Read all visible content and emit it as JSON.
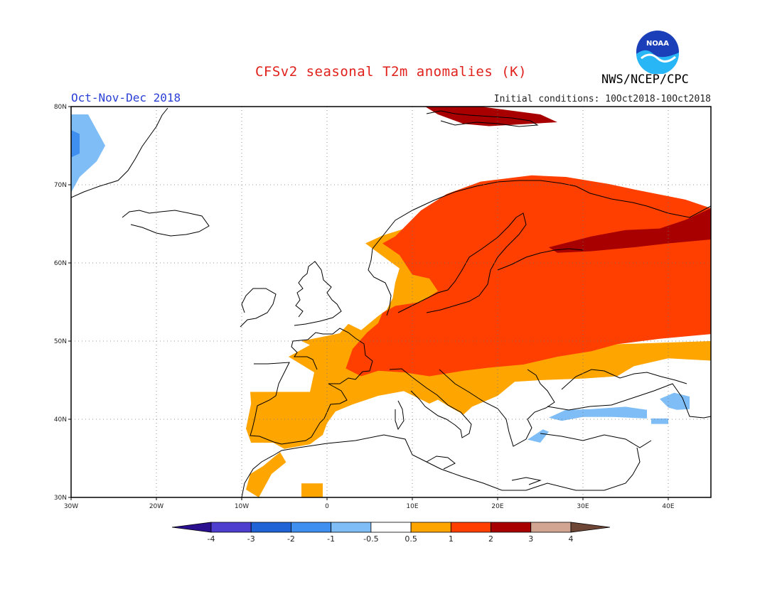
{
  "title": "CFSv2 seasonal T2m anomalies (K)",
  "agency": "NWS/NCEP/CPC",
  "logo_text": "NOAA",
  "season": "Oct-Nov-Dec 2018",
  "initial_conditions": "Initial conditions: 10Oct2018-10Oct2018",
  "map": {
    "lon_range": [
      -30,
      45
    ],
    "lat_range": [
      30,
      80
    ],
    "lon_ticks": [
      {
        "value": -30,
        "label": "30W"
      },
      {
        "value": -20,
        "label": "20W"
      },
      {
        "value": -10,
        "label": "10W"
      },
      {
        "value": 0,
        "label": "0"
      },
      {
        "value": 10,
        "label": "10E"
      },
      {
        "value": 20,
        "label": "20E"
      },
      {
        "value": 30,
        "label": "30E"
      },
      {
        "value": 40,
        "label": "40E"
      }
    ],
    "lat_ticks": [
      {
        "value": 30,
        "label": "30N"
      },
      {
        "value": 40,
        "label": "40N"
      },
      {
        "value": 50,
        "label": "50N"
      },
      {
        "value": 60,
        "label": "60N"
      },
      {
        "value": 70,
        "label": "70N"
      },
      {
        "value": 80,
        "label": "80N"
      }
    ],
    "grid": "dotted"
  },
  "colorbar": {
    "colors": [
      "#2a0f8f",
      "#4d3ecf",
      "#1f63d6",
      "#3f8ff0",
      "#7fbdf6",
      "#ffffff",
      "#ffa500",
      "#ff3f00",
      "#a80000",
      "#d2a593",
      "#6e4636"
    ],
    "labels": [
      "-4",
      "-3",
      "-2",
      "-1",
      "-0.5",
      "0.5",
      "1",
      "2",
      "3",
      "4"
    ]
  },
  "regions": [
    {
      "name": "Greenland coast",
      "category": "-1 to -0.5",
      "color": "#7fbdf6",
      "polygon": [
        [
          -30,
          79
        ],
        [
          -28,
          79
        ],
        [
          -27,
          77
        ],
        [
          -26,
          75
        ],
        [
          -27,
          73
        ],
        [
          -29,
          71
        ],
        [
          -30,
          69
        ]
      ]
    },
    {
      "name": "Greenland coast core",
      "category": "-2 to -1",
      "color": "#3f8ff0",
      "polygon": [
        [
          -30,
          77
        ],
        [
          -29,
          76.5
        ],
        [
          -29,
          74
        ],
        [
          -30,
          73.5
        ]
      ]
    },
    {
      "name": "Iberia and western Europe",
      "category": "0.5 to 1",
      "color": "#ffa500",
      "polygon": [
        [
          -9,
          43.5
        ],
        [
          -2,
          43.5
        ],
        [
          -1.5,
          46
        ],
        [
          -4.5,
          48
        ],
        [
          -2,
          49.5
        ],
        [
          -3,
          50
        ],
        [
          1.5,
          51
        ],
        [
          2.5,
          52.2
        ],
        [
          4,
          51.4
        ],
        [
          6,
          53.2
        ],
        [
          7,
          54
        ],
        [
          7.7,
          55.5
        ],
        [
          8,
          57.5
        ],
        [
          8.5,
          59.3
        ],
        [
          4.5,
          62.5
        ],
        [
          6.5,
          63.5
        ],
        [
          10,
          64.7
        ],
        [
          12,
          62
        ],
        [
          16,
          61
        ],
        [
          17,
          58.5
        ],
        [
          15,
          56.8
        ],
        [
          12,
          55
        ],
        [
          10.5,
          54
        ],
        [
          15,
          52.5
        ],
        [
          13,
          49.5
        ],
        [
          18,
          47.4
        ],
        [
          22,
          47.6
        ],
        [
          25,
          48
        ],
        [
          30,
          48.6
        ],
        [
          34,
          49.6
        ],
        [
          45,
          50
        ],
        [
          45,
          47.5
        ],
        [
          40,
          47.8
        ],
        [
          36,
          46.8
        ],
        [
          34,
          45.5
        ],
        [
          30,
          45.2
        ],
        [
          25,
          45
        ],
        [
          22,
          44.8
        ],
        [
          20,
          43
        ],
        [
          17,
          41.6
        ],
        [
          16,
          40.6
        ],
        [
          14.5,
          41.5
        ],
        [
          13,
          42.5
        ],
        [
          12,
          42
        ],
        [
          9,
          43.6
        ],
        [
          6,
          43
        ],
        [
          3,
          41.9
        ],
        [
          1,
          41
        ],
        [
          0,
          39.5
        ],
        [
          -0.5,
          38
        ],
        [
          -2,
          36.8
        ],
        [
          -5,
          36.2
        ],
        [
          -6.3,
          37
        ],
        [
          -8.9,
          37
        ],
        [
          -9.5,
          38.8
        ],
        [
          -8.9,
          42
        ]
      ]
    },
    {
      "name": "Morocco",
      "category": "0.5 to 1",
      "color": "#ffa500",
      "polygon": [
        [
          -8,
          30
        ],
        [
          -9.5,
          31
        ],
        [
          -9,
          33
        ],
        [
          -7.5,
          34
        ],
        [
          -5.5,
          35.8
        ],
        [
          -4.8,
          34.5
        ],
        [
          -6.5,
          33
        ]
      ]
    },
    {
      "name": "Algeria patch",
      "category": "0.5 to 1",
      "color": "#ffa500",
      "polygon": [
        [
          -3,
          30
        ],
        [
          -3,
          31.8
        ],
        [
          -0.5,
          31.8
        ],
        [
          -0.5,
          30
        ]
      ]
    },
    {
      "name": "Central and northern Europe",
      "category": "1 to 2",
      "color": "#ff3f00",
      "polygon": [
        [
          3,
          49
        ],
        [
          2.2,
          46.5
        ],
        [
          4,
          45.5
        ],
        [
          6,
          46.2
        ],
        [
          9,
          46
        ],
        [
          12,
          45.5
        ],
        [
          16,
          46.2
        ],
        [
          19,
          46.6
        ],
        [
          23,
          47
        ],
        [
          27,
          48
        ],
        [
          31,
          48.7
        ],
        [
          34,
          49.6
        ],
        [
          39,
          50.3
        ],
        [
          45,
          50.9
        ],
        [
          45,
          67
        ],
        [
          42,
          68.1
        ],
        [
          36,
          69.4
        ],
        [
          33,
          70.1
        ],
        [
          28,
          71
        ],
        [
          24,
          71.2
        ],
        [
          18,
          70.4
        ],
        [
          14,
          68.8
        ],
        [
          11,
          66.7
        ],
        [
          8,
          63.4
        ],
        [
          6.5,
          62.5
        ],
        [
          8.5,
          61
        ],
        [
          10,
          58.5
        ],
        [
          12,
          58
        ],
        [
          13,
          56.4
        ],
        [
          11,
          55
        ],
        [
          8,
          54.5
        ],
        [
          6.5,
          53.6
        ],
        [
          6,
          52.3
        ],
        [
          4.7,
          51.1
        ]
      ]
    },
    {
      "name": "Russia / Finland hotspot",
      "category": "2 to 3",
      "color": "#a80000",
      "polygon": [
        [
          26,
          62
        ],
        [
          31,
          63.4
        ],
        [
          35,
          64.2
        ],
        [
          39,
          64.4
        ],
        [
          42,
          65.5
        ],
        [
          45,
          67
        ],
        [
          45,
          63
        ],
        [
          40,
          62.5
        ],
        [
          36,
          62
        ],
        [
          31,
          61.5
        ],
        [
          27,
          61.3
        ]
      ]
    },
    {
      "name": "Svalbard",
      "category": "2 to 3",
      "color": "#a80000",
      "polygon": [
        [
          11.5,
          80
        ],
        [
          18,
          80
        ],
        [
          25,
          79
        ],
        [
          27,
          78
        ],
        [
          19,
          77.5
        ],
        [
          16,
          77.8
        ],
        [
          13,
          79
        ]
      ]
    },
    {
      "name": "Turkey coast",
      "category": "-1 to -0.5",
      "color": "#7fbdf6",
      "polygon": [
        [
          26,
          40.2
        ],
        [
          28,
          41.2
        ],
        [
          31,
          41.3
        ],
        [
          35,
          41.6
        ],
        [
          37.5,
          41.2
        ],
        [
          37.5,
          40.1
        ],
        [
          33.5,
          40.3
        ],
        [
          30,
          40.3
        ],
        [
          27.5,
          39.8
        ]
      ]
    },
    {
      "name": "Turkey east",
      "category": "-1 to -0.5",
      "color": "#7fbdf6",
      "polygon": [
        [
          38,
          39.4
        ],
        [
          38,
          40.1
        ],
        [
          40,
          40.1
        ],
        [
          40,
          39.4
        ]
      ]
    },
    {
      "name": "Caucasus",
      "category": "-1 to -0.5",
      "color": "#7fbdf6",
      "polygon": [
        [
          39,
          42.6
        ],
        [
          40.7,
          43.4
        ],
        [
          42.5,
          42.9
        ],
        [
          42.5,
          41.3
        ],
        [
          41,
          41.2
        ],
        [
          40,
          41.5
        ]
      ]
    },
    {
      "name": "Aegean",
      "category": "-1 to -0.5",
      "color": "#7fbdf6",
      "polygon": [
        [
          23.5,
          37.4
        ],
        [
          25.3,
          38.7
        ],
        [
          26,
          38.4
        ],
        [
          25,
          37
        ]
      ]
    }
  ]
}
